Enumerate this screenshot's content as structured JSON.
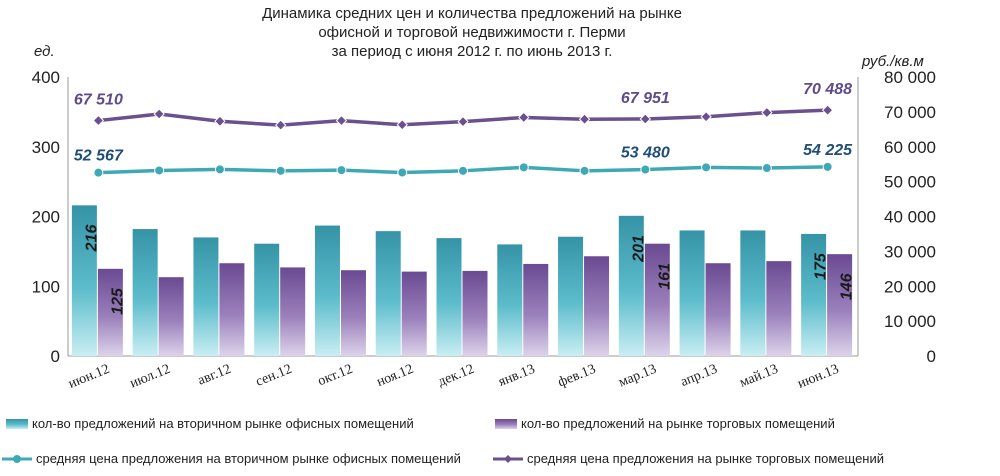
{
  "chart_data": {
    "type": "bar",
    "title_lines": [
      "Динамика средних цен и количества предложений на рынке",
      "офисной и торговой недвижимости г. Перми",
      "за период с июня 2012 г. по июнь 2013 г."
    ],
    "ylabel_left": "ед.",
    "ylabel_right": "руб./кв.м",
    "ylim_left": [
      0,
      400
    ],
    "ylim_right": [
      0,
      80000
    ],
    "yticks_left": [
      0,
      100,
      200,
      300,
      400
    ],
    "yticks_left_labels": [
      "0",
      "100",
      "200",
      "300",
      "400"
    ],
    "yticks_right": [
      0,
      10000,
      20000,
      30000,
      40000,
      50000,
      60000,
      70000,
      80000
    ],
    "yticks_right_labels": [
      "0",
      "10 000",
      "20 000",
      "30 000",
      "40 000",
      "50 000",
      "60 000",
      "70 000",
      "80 000"
    ],
    "categories": [
      "июн.12",
      "июл.12",
      "авг.12",
      "сен.12",
      "окт.12",
      "ноя.12",
      "дек.12",
      "янв.13",
      "фев.13",
      "мар.13",
      "апр.13",
      "май.13",
      "июн.13"
    ],
    "grid": false,
    "legend_position": "bottom",
    "series": [
      {
        "name": "кол-во предложений на вторичном рынке офисных помещений",
        "type": "bar",
        "axis": "left",
        "color": "#3a9fb0",
        "values": [
          216,
          182,
          170,
          161,
          187,
          179,
          169,
          160,
          171,
          201,
          180,
          180,
          175
        ],
        "labels": [
          "216",
          "",
          "",
          "",
          "",
          "",
          "",
          "",
          "",
          "201",
          "",
          "",
          "175"
        ]
      },
      {
        "name": "кол-во предложений на рынке торговых помещений",
        "type": "bar",
        "axis": "left",
        "color": "#7a5c9e",
        "values": [
          125,
          113,
          133,
          127,
          123,
          121,
          122,
          132,
          143,
          161,
          133,
          136,
          146
        ],
        "labels": [
          "125",
          "",
          "",
          "",
          "",
          "",
          "",
          "",
          "",
          "161",
          "",
          "",
          "146"
        ]
      },
      {
        "name": "средняя цена предложения на вторичном рынке офисных помещений",
        "type": "line",
        "axis": "right",
        "color": "#3fa8b5",
        "values": [
          52567,
          53200,
          53500,
          53100,
          53300,
          52600,
          53100,
          54100,
          53100,
          53480,
          54100,
          53900,
          54225
        ],
        "labels": [
          "52 567",
          "",
          "",
          "",
          "",
          "",
          "",
          "",
          "",
          "53 480",
          "",
          "",
          "54 225"
        ]
      },
      {
        "name": "средняя цена предложения на рынке торговых помещений",
        "type": "line",
        "axis": "right",
        "color": "#6b4f8f",
        "values": [
          67510,
          69400,
          67300,
          66200,
          67500,
          66300,
          67200,
          68400,
          67900,
          67951,
          68600,
          69800,
          70488
        ],
        "labels": [
          "67 510",
          "",
          "",
          "",
          "",
          "",
          "",
          "",
          "",
          "67 951",
          "",
          "",
          "70 488"
        ]
      }
    ]
  }
}
